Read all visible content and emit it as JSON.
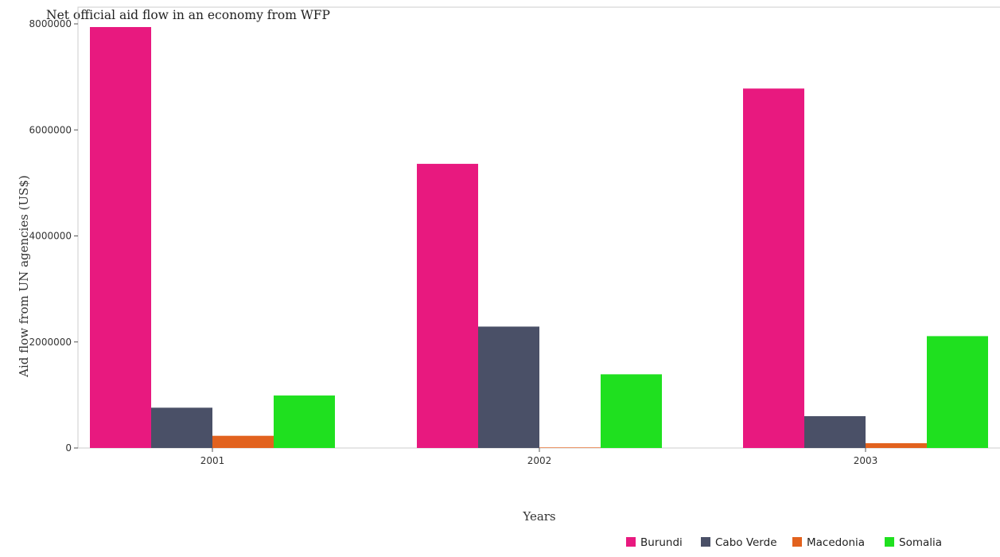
{
  "chart_data": {
    "type": "bar",
    "title": "Net official aid flow in an economy from WFP",
    "xlabel": "Years",
    "ylabel": "Aid flow from UN agencies (US$)",
    "categories": [
      "2001",
      "2002",
      "2003"
    ],
    "ylim": [
      0,
      8000000
    ],
    "yticks": [
      0,
      2000000,
      4000000,
      6000000,
      8000000
    ],
    "ytick_labels": [
      "0",
      "2000000",
      "4000000",
      "6000000",
      "8000000"
    ],
    "grid": false,
    "legend_position": "bottom-right",
    "series": [
      {
        "name": "Burundi",
        "color": "#e8197f",
        "values": [
          7940000,
          5360000,
          6780000
        ]
      },
      {
        "name": "Cabo Verde",
        "color": "#4a5067",
        "values": [
          760000,
          2290000,
          600000
        ]
      },
      {
        "name": "Macedonia",
        "color": "#e2621e",
        "values": [
          230000,
          10000,
          90000
        ]
      },
      {
        "name": "Somalia",
        "color": "#1fe01f",
        "values": [
          990000,
          1390000,
          2110000
        ]
      }
    ]
  }
}
